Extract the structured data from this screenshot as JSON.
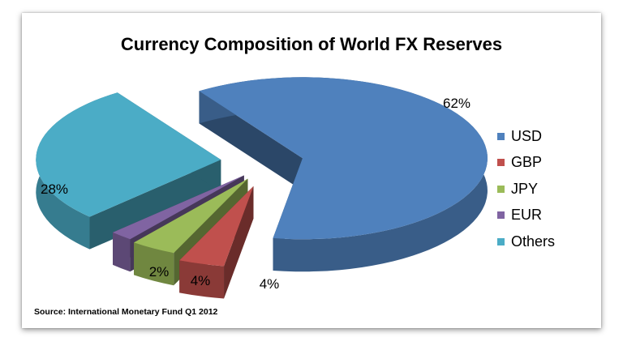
{
  "chart_data": {
    "type": "pie",
    "title": "Currency Composition of World FX Reserves",
    "source": "Source: International Monetary Fund Q1 2012",
    "categories": [
      "USD",
      "GBP",
      "JPY",
      "EUR",
      "Others"
    ],
    "values": [
      62,
      4,
      4,
      2,
      28
    ],
    "data_labels": [
      "62%",
      "4%",
      "4%",
      "2%",
      "28%"
    ],
    "colors": [
      "#4F81BD",
      "#C0504D",
      "#9BBB59",
      "#8064A2",
      "#4BACC6"
    ],
    "legend_position": "right",
    "style": "3d-exploded"
  }
}
